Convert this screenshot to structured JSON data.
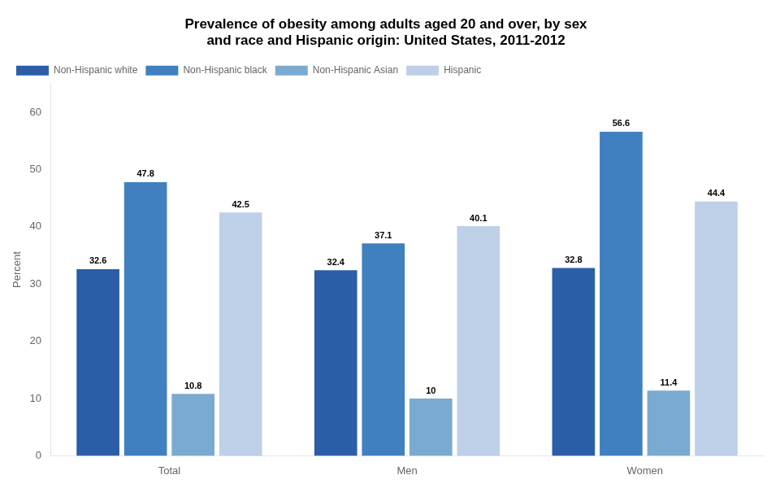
{
  "chart_data": {
    "type": "bar",
    "title": "Prevalence of obesity among adults aged 20 and over, by sex\nand race and Hispanic origin: United States, 2011-2012",
    "ylabel": "Percent",
    "categories": [
      "Total",
      "Men",
      "Women"
    ],
    "series": [
      {
        "name": "Non-Hispanic white",
        "color": "#2B5EA7",
        "values": [
          32.6,
          32.4,
          32.8
        ]
      },
      {
        "name": "Non-Hispanic black",
        "color": "#4080C0",
        "values": [
          47.8,
          37.1,
          56.6
        ]
      },
      {
        "name": "Non-Hispanic Asian",
        "color": "#7BAAD0",
        "values": [
          10.8,
          10.0,
          11.4
        ]
      },
      {
        "name": "Hispanic",
        "color": "#BDD0E8",
        "values": [
          42.5,
          40.1,
          44.4
        ]
      }
    ],
    "ylim": [
      0,
      65
    ],
    "yticks": [
      0,
      10,
      20,
      30,
      40,
      50,
      60
    ],
    "grid": false,
    "legend": "upper left",
    "data_labels": true
  }
}
